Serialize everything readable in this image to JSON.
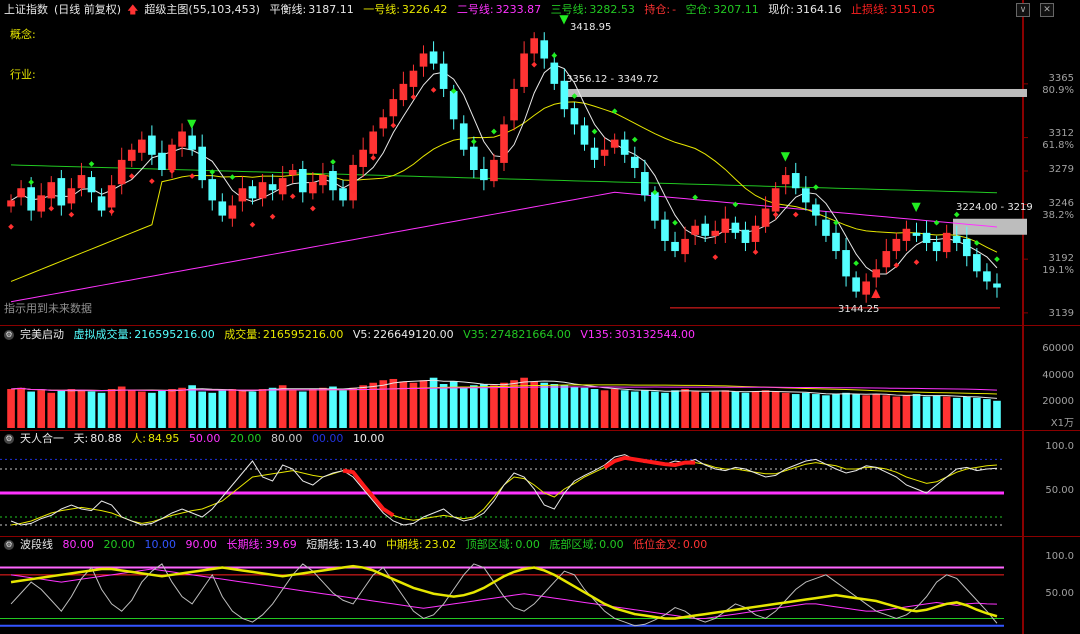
{
  "main": {
    "title": "上证指数",
    "period": "(日线 前复权)",
    "indicator_name": "超级主图",
    "indicator_params": "(55,103,453)",
    "balance_label": "平衡线:",
    "balance_value": "3187.11",
    "line1_label": "一号线:",
    "line1_value": "3226.42",
    "line2_label": "二号线:",
    "line2_value": "3233.87",
    "line3_label": "三号线:",
    "line3_value": "3282.53",
    "hold_label": "持仓:",
    "hold_value": "-",
    "empty_label": "空仓:",
    "empty_value": "3207.11",
    "price_label": "现价:",
    "price_value": "3164.16",
    "stop_label": "止损线:",
    "stop_value": "3151.05",
    "concept_label": "概念:",
    "industry_label": "行业:",
    "future_note": "指示用到未来数据",
    "annot_high": "3418.95",
    "annot_r1": "3356.12 - 3349.72",
    "annot_r2": "3224.00 - 3219",
    "annot_low": "3144.25",
    "axis_labels": [
      "3365",
      "80.9%",
      "3312",
      "61.8%",
      "3279",
      "3246",
      "38.2%",
      "3192",
      "19.1%",
      "3139"
    ]
  },
  "volume": {
    "title": "完美启动",
    "v1_label": "虚拟成交量:",
    "v1_value": "216595216.00",
    "v2_label": "成交量:",
    "v2_value": "216595216.00",
    "v3_label": "V5:",
    "v3_value": "226649120.00",
    "v4_label": "V35:",
    "v4_value": "274821664.00",
    "v5_label": "V135:",
    "v5_value": "303132544.00",
    "axis_labels": [
      "60000",
      "40000",
      "20000"
    ],
    "unit": "X1万"
  },
  "tianren": {
    "title": "天人合一",
    "tian_label": "天:",
    "tian_value": "80.88",
    "ren_label": "人:",
    "ren_value": "84.95",
    "p1": "50.00",
    "p2": "20.00",
    "p3": "80.00",
    "p4": "00.00",
    "p5": "10.00",
    "axis_labels": [
      "100.0",
      "50.00"
    ]
  },
  "boduan": {
    "title": "波段线",
    "p1": "80.00",
    "p2": "20.00",
    "p3": "10.00",
    "p4": "90.00",
    "long_label": "长期线:",
    "long_value": "39.69",
    "short_label": "短期线:",
    "short_value": "13.40",
    "mid_label": "中期线:",
    "mid_value": "23.02",
    "top_label": "顶部区域:",
    "top_value": "0.00",
    "bottom_label": "底部区域:",
    "bottom_value": "0.00",
    "lowgold_label": "低位金叉:",
    "lowgold_value": "0.00",
    "axis_labels": [
      "100.0",
      "50.00"
    ]
  },
  "colors": {
    "up": "#ff3333",
    "down": "#54ffff",
    "yellow": "#e6e600",
    "magenta": "#ff33ff",
    "green": "#22c822",
    "white": "#e8e8e8",
    "stop": "#ff2020"
  },
  "chart_data": [
    {
      "type": "candlestick",
      "title": "上证指数",
      "ylim": [
        3130,
        3430
      ],
      "y_ticks": [
        3365,
        3312,
        3279,
        3246,
        3192,
        3139
      ],
      "fib_levels": [
        "80.9%",
        "61.8%",
        "38.2%",
        "19.1%"
      ],
      "close_approx": [
        3250,
        3262,
        3240,
        3255,
        3268,
        3245,
        3262,
        3275,
        3258,
        3240,
        3265,
        3290,
        3300,
        3310,
        3295,
        3280,
        3305,
        3318,
        3300,
        3270,
        3250,
        3235,
        3245,
        3262,
        3252,
        3268,
        3260,
        3272,
        3280,
        3258,
        3268,
        3275,
        3260,
        3250,
        3285,
        3300,
        3318,
        3332,
        3350,
        3365,
        3378,
        3395,
        3385,
        3360,
        3330,
        3300,
        3280,
        3270,
        3290,
        3325,
        3360,
        3395,
        3410,
        3390,
        3365,
        3340,
        3325,
        3305,
        3290,
        3300,
        3310,
        3295,
        3282,
        3255,
        3230,
        3210,
        3200,
        3212,
        3225,
        3215,
        3220,
        3232,
        3218,
        3208,
        3225,
        3242,
        3262,
        3275,
        3262,
        3248,
        3235,
        3215,
        3200,
        3175,
        3160,
        3170,
        3182,
        3200,
        3212,
        3222,
        3215,
        3208,
        3200,
        3218,
        3208,
        3195,
        3180,
        3170,
        3164
      ],
      "annotations": [
        "3418.95",
        "3356.12 - 3349.72",
        "3224.00 - 3219",
        "3144.25"
      ]
    },
    {
      "type": "bar",
      "title": "成交量",
      "ylim": [
        0,
        70000
      ],
      "unit": "X1万",
      "series": [
        {
          "name": "成交量",
          "values": [
            31000,
            32000,
            29000,
            30000,
            28000,
            30000,
            31000,
            30000,
            29000,
            28000,
            31000,
            33000,
            30000,
            29000,
            28000,
            30000,
            31000,
            32000,
            34000,
            29000,
            28000,
            30000,
            31000,
            30000,
            29000,
            31000,
            32000,
            34000,
            30000,
            29000,
            31000,
            32000,
            33000,
            30000,
            32000,
            34000,
            36000,
            38000,
            39000,
            37000,
            36000,
            38000,
            40000,
            35000,
            37000,
            33000,
            34000,
            35000,
            34000,
            36000,
            38000,
            40000,
            37000,
            36000,
            35000,
            34000,
            33000,
            32000,
            31000,
            30000,
            31000,
            30000,
            29000,
            30000,
            29000,
            28000,
            30000,
            31000,
            29000,
            28000,
            29000,
            30000,
            29000,
            28000,
            29000,
            30000,
            29000,
            28000,
            27000,
            28000,
            27000,
            26000,
            27000,
            28000,
            27000,
            26000,
            27000,
            26000,
            25000,
            26000,
            27000,
            25000,
            26000,
            25000,
            24000,
            25000,
            24000,
            23000,
            21660
          ]
        }
      ]
    },
    {
      "type": "line",
      "title": "天人合一",
      "ylim": [
        0,
        110
      ],
      "series": [
        {
          "name": "天",
          "values": [
            15,
            10,
            12,
            18,
            22,
            30,
            35,
            30,
            28,
            40,
            35,
            20,
            15,
            10,
            12,
            18,
            25,
            30,
            25,
            20,
            30,
            45,
            60,
            75,
            90,
            70,
            65,
            85,
            80,
            65,
            60,
            70,
            75,
            78,
            70,
            55,
            40,
            25,
            15,
            10,
            12,
            20,
            25,
            30,
            20,
            15,
            18,
            25,
            40,
            60,
            75,
            70,
            55,
            35,
            30,
            50,
            65,
            72,
            78,
            85,
            95,
            98,
            92,
            88,
            90,
            86,
            90,
            88,
            92,
            85,
            80,
            78,
            82,
            80,
            75,
            70,
            72,
            80,
            85,
            90,
            92,
            86,
            80,
            75,
            78,
            84,
            82,
            76,
            70,
            60,
            55,
            50,
            60,
            70,
            80,
            82,
            78,
            80,
            81
          ]
        },
        {
          "name": "人",
          "values": [
            10,
            12,
            15,
            20,
            25,
            28,
            30,
            32,
            30,
            28,
            25,
            20,
            15,
            12,
            14,
            18,
            22,
            25,
            28,
            30,
            35,
            40,
            50,
            60,
            70,
            72,
            74,
            76,
            78,
            75,
            72,
            70,
            74,
            78,
            76,
            60,
            45,
            30,
            22,
            18,
            16,
            18,
            20,
            22,
            20,
            18,
            20,
            30,
            45,
            60,
            70,
            68,
            60,
            50,
            45,
            55,
            62,
            70,
            76,
            82,
            90,
            94,
            92,
            90,
            88,
            86,
            85,
            88,
            88,
            86,
            82,
            80,
            80,
            78,
            76,
            74,
            74,
            78,
            82,
            86,
            88,
            86,
            84,
            80,
            80,
            82,
            82,
            80,
            76,
            70,
            66,
            62,
            64,
            70,
            76,
            80,
            82,
            84,
            85
          ]
        }
      ],
      "hlines": [
        50,
        80,
        20,
        10
      ]
    },
    {
      "type": "line",
      "title": "波段线",
      "ylim": [
        0,
        110
      ],
      "series": [
        {
          "name": "长期线",
          "values": [
            80,
            78,
            76,
            74,
            72,
            70,
            72,
            74,
            76,
            78,
            80,
            82,
            84,
            86,
            88,
            86,
            84,
            82,
            80,
            78,
            76,
            74,
            72,
            70,
            68,
            66,
            64,
            62,
            60,
            58,
            56,
            54,
            52,
            50,
            48,
            46,
            44,
            42,
            40,
            38,
            36,
            34,
            36,
            38,
            40,
            42,
            44,
            46,
            48,
            50,
            52,
            54,
            52,
            50,
            48,
            46,
            44,
            42,
            40,
            38,
            36,
            34,
            32,
            30,
            28,
            26,
            24,
            22,
            20,
            20,
            22,
            24,
            26,
            28,
            30,
            32,
            34,
            36,
            38,
            40,
            40,
            38,
            36,
            34,
            32,
            30,
            30,
            32,
            34,
            36,
            38,
            40,
            42,
            40,
            38,
            40,
            41,
            40,
            39.69
          ]
        },
        {
          "name": "短期线",
          "values": [
            40,
            55,
            70,
            60,
            45,
            30,
            50,
            75,
            90,
            60,
            40,
            30,
            45,
            70,
            85,
            95,
            70,
            50,
            40,
            60,
            80,
            50,
            30,
            20,
            15,
            25,
            40,
            60,
            80,
            95,
            85,
            70,
            55,
            45,
            40,
            60,
            80,
            90,
            70,
            50,
            30,
            20,
            25,
            40,
            60,
            80,
            95,
            90,
            70,
            50,
            35,
            30,
            40,
            55,
            70,
            85,
            80,
            60,
            45,
            30,
            20,
            15,
            10,
            12,
            18,
            25,
            35,
            30,
            20,
            15,
            20,
            30,
            40,
            35,
            25,
            20,
            30,
            45,
            60,
            70,
            75,
            80,
            70,
            60,
            50,
            40,
            30,
            25,
            20,
            25,
            35,
            50,
            70,
            80,
            75,
            60,
            45,
            30,
            13.4
          ]
        },
        {
          "name": "中期线",
          "values": [
            70,
            72,
            74,
            76,
            78,
            80,
            82,
            84,
            86,
            88,
            88,
            86,
            84,
            82,
            80,
            78,
            80,
            82,
            84,
            86,
            88,
            90,
            88,
            86,
            84,
            82,
            80,
            78,
            80,
            82,
            84,
            86,
            88,
            90,
            92,
            90,
            86,
            80,
            74,
            68,
            62,
            58,
            54,
            52,
            50,
            52,
            56,
            62,
            70,
            78,
            84,
            88,
            90,
            86,
            80,
            72,
            64,
            56,
            48,
            40,
            34,
            30,
            26,
            24,
            22,
            20,
            20,
            22,
            24,
            26,
            28,
            30,
            32,
            34,
            36,
            38,
            40,
            42,
            44,
            46,
            48,
            50,
            52,
            50,
            48,
            46,
            44,
            40,
            36,
            32,
            30,
            32,
            36,
            40,
            42,
            38,
            32,
            27,
            23.02
          ]
        }
      ],
      "hlines": [
        90,
        80,
        20,
        10
      ]
    }
  ]
}
